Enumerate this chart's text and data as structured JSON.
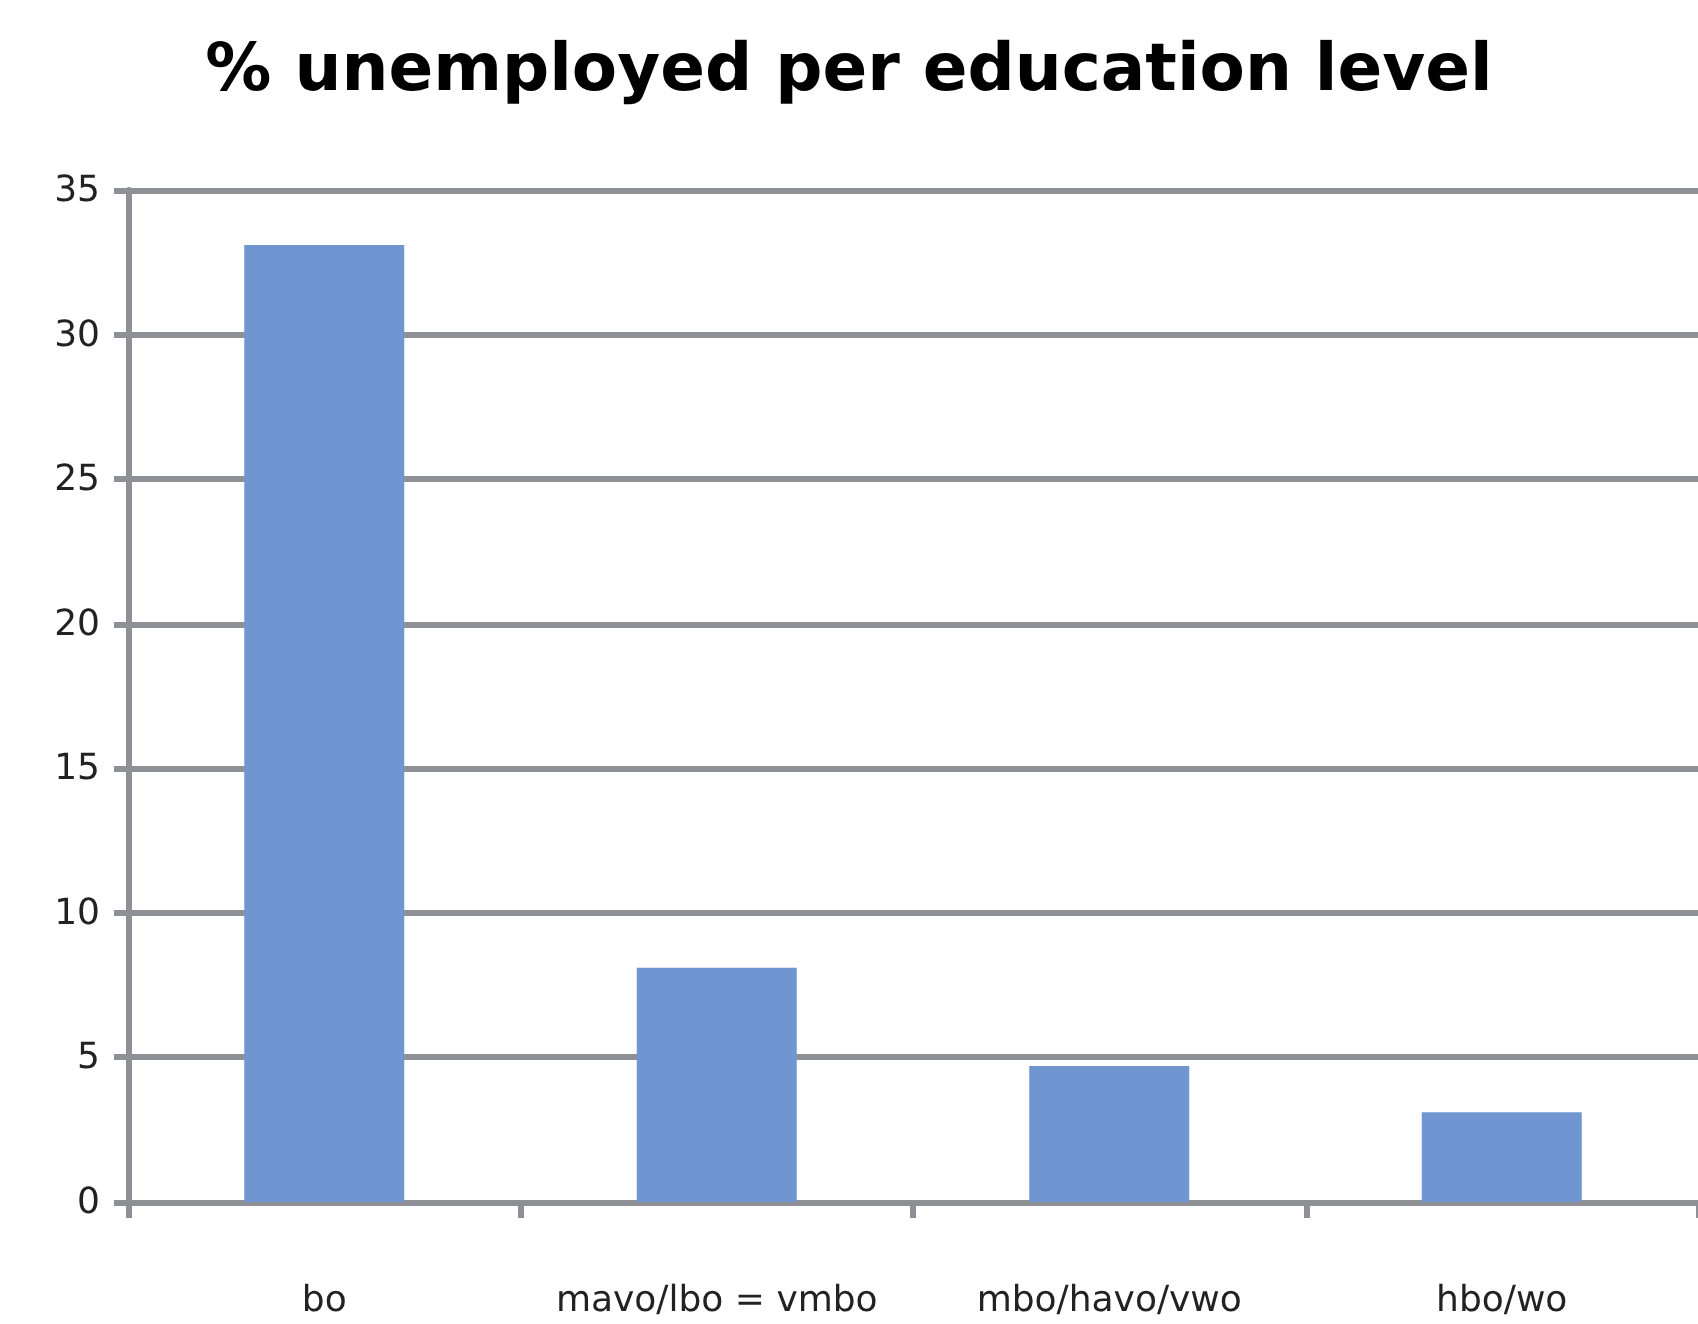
{
  "chart_data": {
    "type": "bar",
    "title": "% unemployed per education level",
    "categories": [
      "bo",
      "mavo/lbo = vmbo",
      "mbo/havo/vwo",
      "hbo/wo"
    ],
    "values": [
      33.1,
      8.1,
      4.7,
      3.1
    ],
    "color": "#6f96d1",
    "ylim": [
      0,
      35
    ],
    "yticks": [
      0,
      5,
      10,
      15,
      20,
      25,
      30,
      35
    ],
    "grid": "y"
  }
}
